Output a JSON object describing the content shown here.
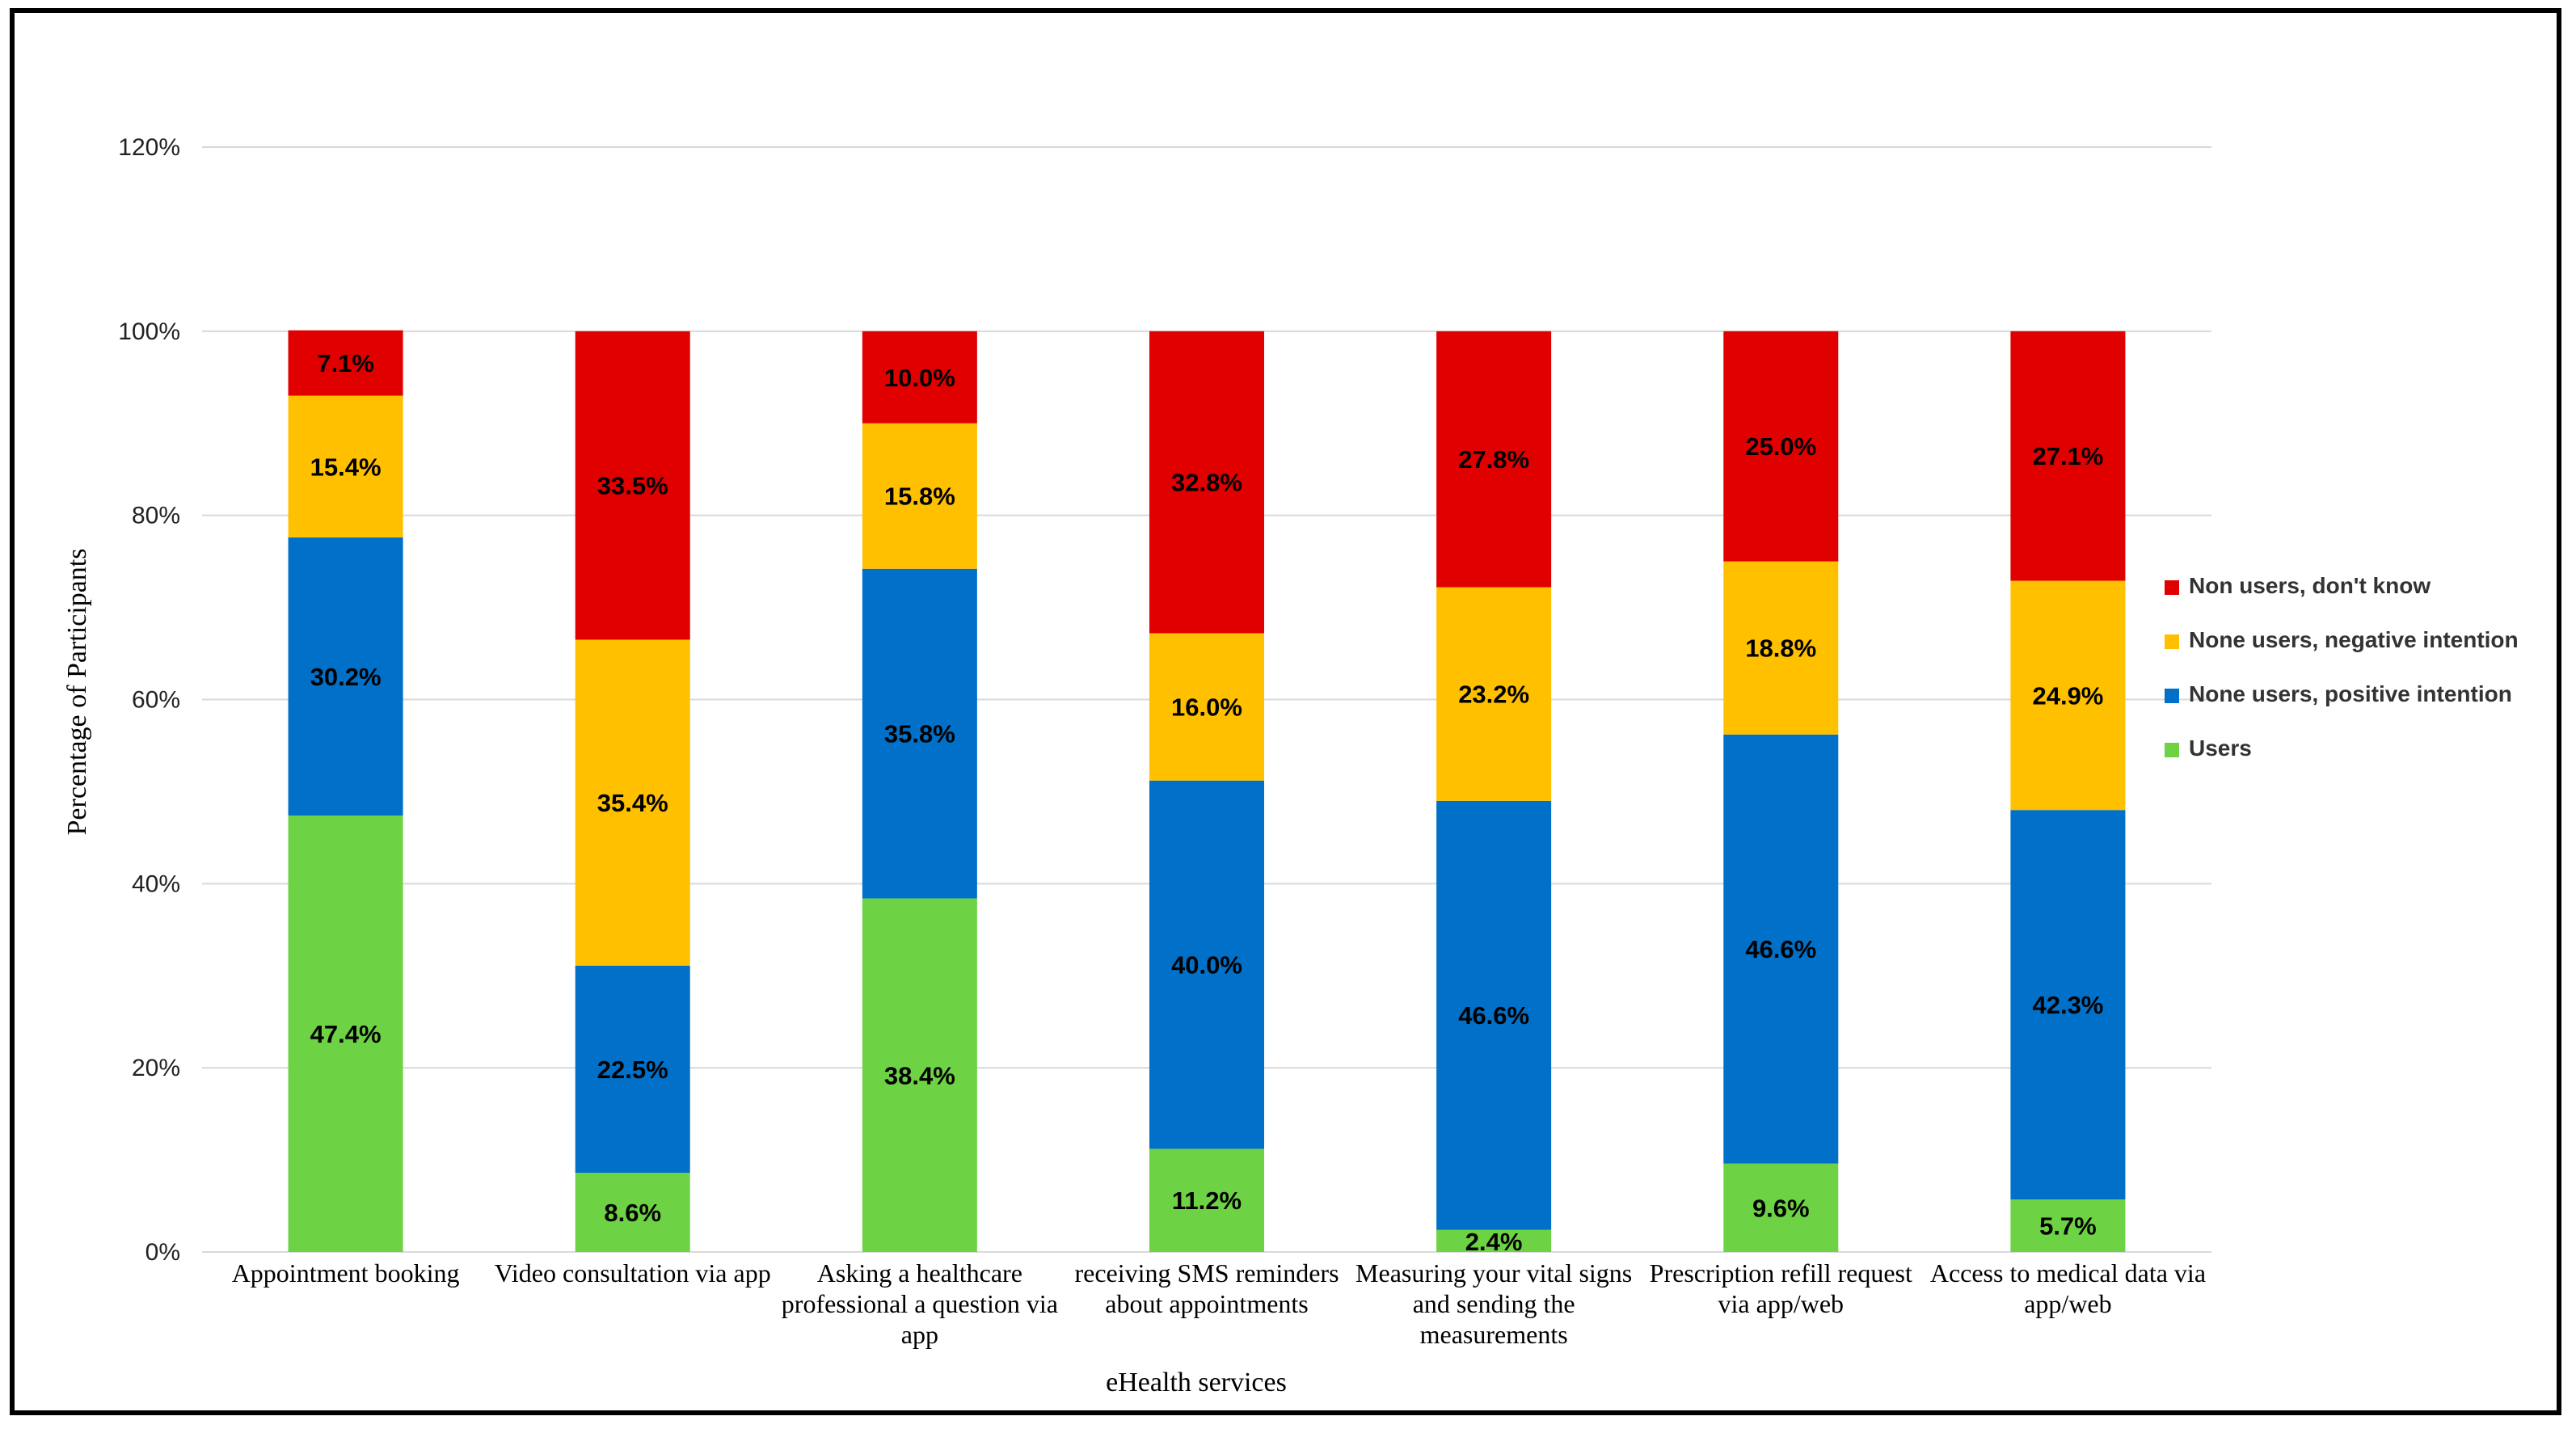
{
  "chart_data": {
    "type": "bar",
    "stacked": true,
    "xlabel": "eHealth services",
    "ylabel": "Percentage of Participants",
    "ylim": [
      0,
      120
    ],
    "yticks": [
      "0%",
      "20%",
      "40%",
      "60%",
      "80%",
      "100%",
      "120%"
    ],
    "ytick_values": [
      0,
      20,
      40,
      60,
      80,
      100,
      120
    ],
    "categories": [
      [
        "Appointment booking"
      ],
      [
        "Video consultation via app"
      ],
      [
        "Asking a healthcare",
        "professional a question via",
        "app"
      ],
      [
        "receiving SMS reminders",
        "about appointments"
      ],
      [
        "Measuring your vital signs",
        "and sending the",
        "measurements"
      ],
      [
        "Prescription refill request",
        "via app/web"
      ],
      [
        "Access to medical data via",
        "app/web"
      ]
    ],
    "series": [
      {
        "name": "Users",
        "color": "#6dd244",
        "values": [
          47.4,
          8.6,
          38.4,
          11.2,
          2.4,
          9.6,
          5.7
        ],
        "labels": [
          "47.4%",
          "8.6%",
          "38.4%",
          "11.2%",
          "2.4%",
          "9.6%",
          "5.7%"
        ]
      },
      {
        "name": "None users, positive intention",
        "color": "#0070c8",
        "values": [
          30.2,
          22.5,
          35.8,
          40.0,
          46.6,
          46.6,
          42.3
        ],
        "labels": [
          "30.2%",
          "22.5%",
          "35.8%",
          "40.0%",
          "46.6%",
          "46.6%",
          "42.3%"
        ]
      },
      {
        "name": "None users, negative intention",
        "color": "#ffc000",
        "values": [
          15.4,
          35.4,
          15.8,
          16.0,
          23.2,
          18.8,
          24.9
        ],
        "labels": [
          "15.4%",
          "35.4%",
          "15.8%",
          "16.0%",
          "23.2%",
          "18.8%",
          "24.9%"
        ]
      },
      {
        "name": "Non users, don't know",
        "color": "#e00000",
        "values": [
          7.1,
          33.5,
          10.0,
          32.8,
          27.8,
          25.0,
          27.1
        ],
        "labels": [
          "7.1%",
          "33.5%",
          "10.0%",
          "32.8%",
          "27.8%",
          "25.0%",
          "27.1%"
        ]
      }
    ],
    "legend_order": [
      "Non users, don't know",
      "None users, negative intention",
      "None users, positive intention",
      "Users"
    ],
    "legend_position": "right",
    "grid": true
  }
}
